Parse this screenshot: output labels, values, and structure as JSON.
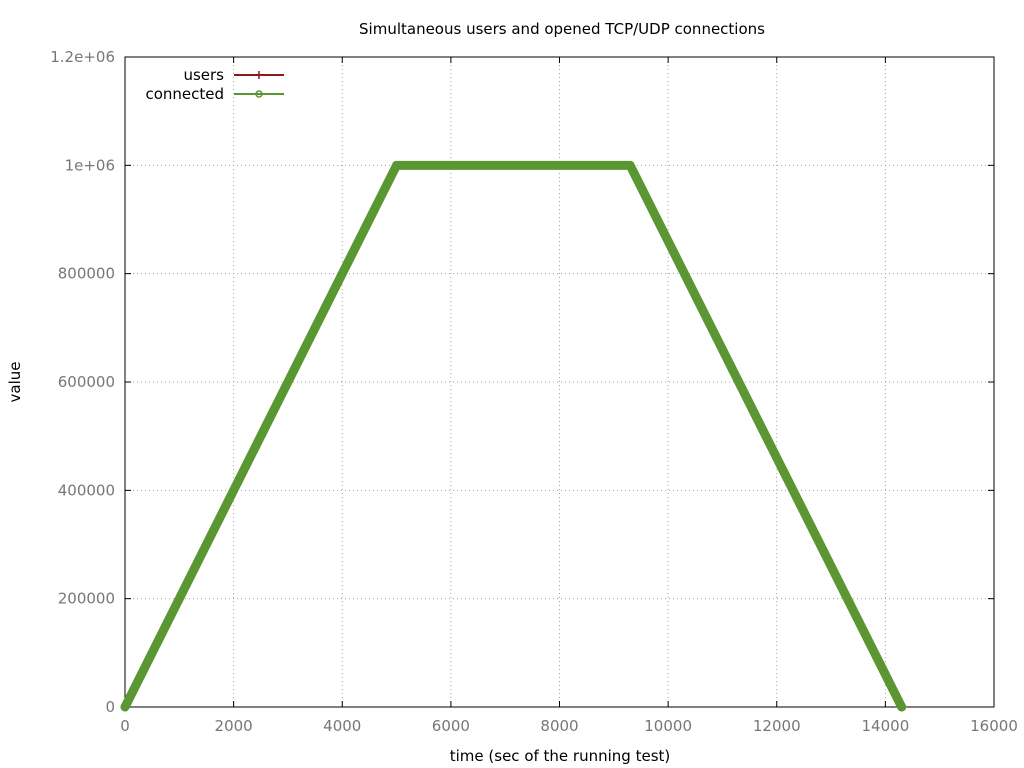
{
  "chart_data": {
    "type": "line",
    "title": "Simultaneous users and opened TCP/UDP connections",
    "xlabel": "time (sec of the running test)",
    "ylabel": "value",
    "xlim": [
      0,
      16000
    ],
    "ylim": [
      0,
      1200000
    ],
    "x_ticks": [
      0,
      2000,
      4000,
      6000,
      8000,
      10000,
      12000,
      14000,
      16000
    ],
    "x_tick_labels": [
      "0",
      "2000",
      "4000",
      "6000",
      "8000",
      "10000",
      "12000",
      "14000",
      "16000"
    ],
    "y_ticks": [
      0,
      200000,
      400000,
      600000,
      800000,
      1000000,
      1200000
    ],
    "y_tick_labels": [
      "0",
      "200000",
      "400000",
      "600000",
      "800000",
      "1e+06",
      "1.2e+06"
    ],
    "grid": true,
    "legend_position": "top-left",
    "series": [
      {
        "name": "users",
        "color": "#8b1a1a",
        "marker": "plus",
        "x": [
          0,
          5000,
          9300,
          14300
        ],
        "y": [
          0,
          1000000,
          1000000,
          0
        ]
      },
      {
        "name": "connected",
        "color": "#5a9632",
        "marker": "circle",
        "x": [
          0,
          5000,
          9300,
          14300
        ],
        "y": [
          0,
          1000000,
          1000000,
          0
        ]
      }
    ]
  }
}
